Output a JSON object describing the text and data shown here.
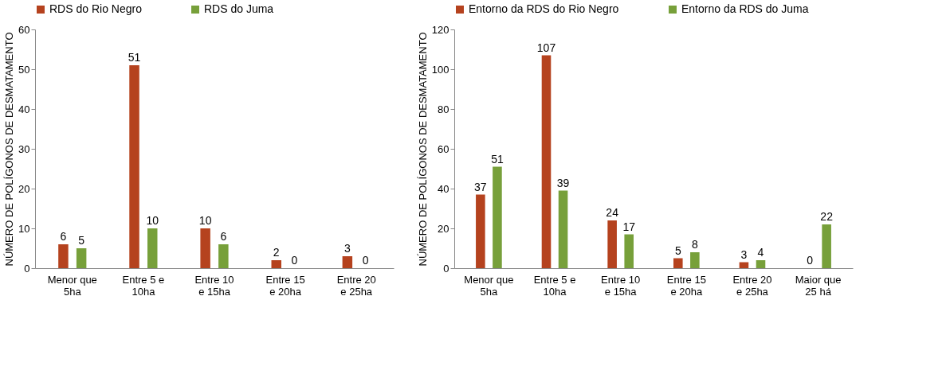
{
  "chart_data": [
    {
      "type": "bar",
      "ylabel": "NÚMERO DE POLÍGONOS DE DESMATAMENTO",
      "categories": [
        "Menor que 5ha",
        "Entre 5 e 10ha",
        "Entre 10 e 15ha",
        "Entre 15 e 20ha",
        "Entre 20 e 25ha"
      ],
      "series": [
        {
          "name": "RDS do Rio Negro",
          "color": "#b5421e",
          "values": [
            6,
            51,
            10,
            2,
            3
          ]
        },
        {
          "name": "RDS do Juma",
          "color": "#77a03a",
          "values": [
            5,
            10,
            6,
            0,
            0
          ]
        }
      ],
      "ylim": [
        0,
        60
      ],
      "yticks": [
        0,
        10,
        20,
        30,
        40,
        50,
        60
      ],
      "grid": false,
      "legend": "top",
      "data_labels": true
    },
    {
      "type": "bar",
      "ylabel": "NÚMERO DE POLÍGONOS DE DESMATAMENTO",
      "categories": [
        "Menor que 5ha",
        "Entre 5 e 10ha",
        "Entre 10 e 15ha",
        "Entre 15 e 20ha",
        "Entre 20 e 25ha",
        "Maior que 25 há"
      ],
      "series": [
        {
          "name": "Entorno da RDS do Rio Negro",
          "color": "#b5421e",
          "values": [
            37,
            107,
            24,
            5,
            3,
            0
          ]
        },
        {
          "name": "Entorno da RDS do Juma",
          "color": "#77a03a",
          "values": [
            51,
            39,
            17,
            8,
            4,
            22
          ]
        }
      ],
      "ylim": [
        0,
        120
      ],
      "yticks": [
        0,
        20,
        40,
        60,
        80,
        100,
        120
      ],
      "grid": false,
      "legend": "top",
      "data_labels": true
    }
  ]
}
